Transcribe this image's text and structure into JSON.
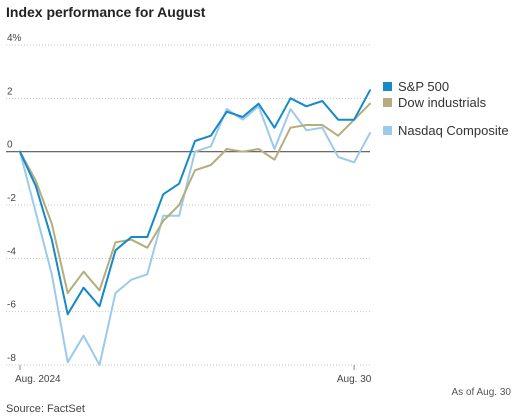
{
  "chart_data": {
    "type": "line",
    "title": "Index performance for August",
    "xlabel": "",
    "ylabel": "",
    "x_tick_labels": [
      {
        "index": 0,
        "label": "Aug. 2024"
      },
      {
        "index": 21,
        "label": "Aug. 30"
      }
    ],
    "y_ticks": [
      4,
      2,
      0,
      -2,
      -4,
      -6,
      -8
    ],
    "y_tick_labels": [
      "4%",
      "2",
      "0",
      "-2",
      "-4",
      "-6",
      "-8"
    ],
    "ylim": [
      -8,
      4
    ],
    "grid": "horizontal dotted",
    "legend_position": "right",
    "series": [
      {
        "name": "Nasdaq Composite",
        "color": "#9ccbe9",
        "values": [
          0,
          -2.3,
          -4.6,
          -7.9,
          -6.9,
          -8.0,
          -5.3,
          -4.8,
          -4.6,
          -2.4,
          -2.4,
          0.0,
          0.2,
          1.6,
          1.2,
          1.7,
          0.1,
          1.6,
          0.8,
          0.9,
          -0.2,
          -0.4,
          0.7
        ]
      },
      {
        "name": "Dow industrials",
        "color": "#b5ad7c",
        "values": [
          0,
          -1.1,
          -2.7,
          -5.3,
          -4.5,
          -5.2,
          -3.4,
          -3.3,
          -3.6,
          -2.6,
          -2.0,
          -0.7,
          -0.5,
          0.1,
          0.0,
          0.1,
          -0.3,
          0.9,
          1.0,
          1.0,
          0.6,
          1.2,
          1.8
        ]
      },
      {
        "name": "S&P 500",
        "color": "#1689c9",
        "values": [
          0,
          -1.3,
          -3.3,
          -6.1,
          -5.1,
          -5.8,
          -3.7,
          -3.2,
          -3.2,
          -1.6,
          -1.2,
          0.4,
          0.6,
          1.5,
          1.3,
          1.8,
          0.9,
          2.0,
          1.7,
          1.9,
          1.2,
          1.2,
          2.3
        ]
      }
    ],
    "legend_order": [
      "S&P 500",
      "Dow industrials",
      "Nasdaq Composite"
    ],
    "note": "As of Aug. 30",
    "source": "Source: FactSet"
  }
}
